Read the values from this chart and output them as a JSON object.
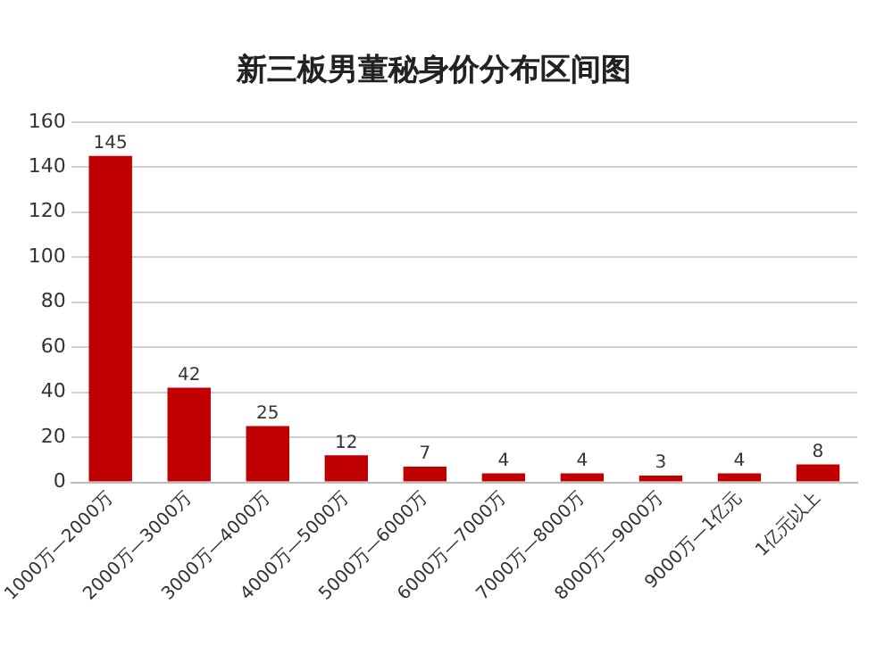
{
  "chart_data": {
    "type": "bar",
    "title": "新三板男董秘身价分布区间图",
    "categories": [
      "1000万—2000万",
      "2000万—3000万",
      "3000万—4000万",
      "4000万—5000万",
      "5000万—6000万",
      "6000万—7000万",
      "7000万—8000万",
      "8000万—9000万",
      "9000万—1亿元",
      "1亿元以上"
    ],
    "values": [
      145,
      42,
      25,
      12,
      7,
      4,
      4,
      3,
      4,
      8
    ],
    "color": "#c00000",
    "ylim": [
      0,
      160
    ],
    "yticks": [
      0,
      20,
      40,
      60,
      80,
      100,
      120,
      140,
      160
    ],
    "grid": "y",
    "data_labels": true
  }
}
